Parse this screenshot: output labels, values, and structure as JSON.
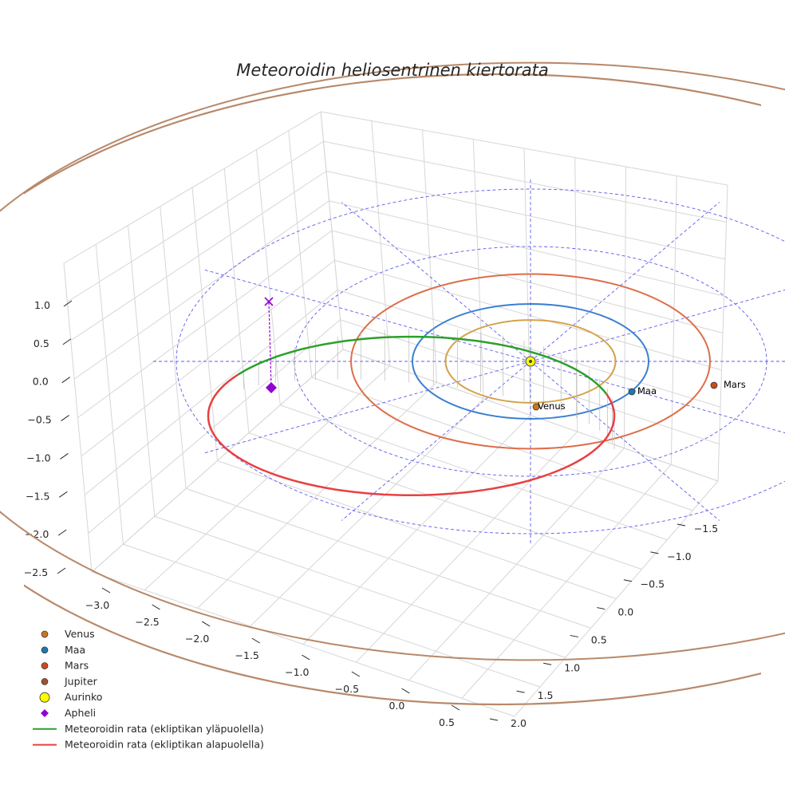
{
  "chart_data": {
    "type": "line",
    "title": "Meteoroidin heliosentrinen kiertorata",
    "projection": "3d",
    "axes": {
      "x": {
        "ticks": [
          -3.0,
          -2.5,
          -2.0,
          -1.5,
          -1.0,
          -0.5,
          0.0,
          0.5
        ],
        "tick_labels": [
          "−3.0",
          "−2.5",
          "−2.0",
          "−1.5",
          "−1.0",
          "−0.5",
          "0.0",
          "0.5"
        ]
      },
      "y": {
        "ticks": [
          -1.5,
          -1.0,
          -0.5,
          0.0,
          0.5,
          1.0,
          1.5,
          2.0
        ],
        "tick_labels": [
          "−1.5",
          "−1.0",
          "−0.5",
          "0.0",
          "0.5",
          "1.0",
          "1.5",
          "2.0"
        ]
      },
      "z": {
        "ticks": [
          1.0,
          0.5,
          0.0,
          -0.5,
          -1.0,
          -1.5,
          -2.0,
          -2.5
        ],
        "tick_labels": [
          "1.0",
          "0.5",
          "0.0",
          "−0.5",
          "−1.0",
          "−1.5",
          "−2.0",
          "−2.5"
        ]
      }
    },
    "planets": [
      {
        "name": "Venus",
        "label": "Venus",
        "color": "#c8761d",
        "orbit_color": "#d4a24a",
        "orbit_radius_au": 0.72
      },
      {
        "name": "Maa",
        "label": "Maa",
        "color": "#1f77b4",
        "orbit_color": "#3a7fcf",
        "orbit_radius_au": 1.0
      },
      {
        "name": "Mars",
        "label": "Mars",
        "color": "#d04a1a",
        "orbit_color": "#dd6e4a",
        "orbit_radius_au": 1.52
      },
      {
        "name": "Jupiter",
        "label": "",
        "color": "#a0522d",
        "orbit_color": "#b8896a",
        "orbit_radius_au": 5.2
      }
    ],
    "sun": {
      "name": "Aurinko",
      "color": "#ffff00"
    },
    "aphelion": {
      "name": "Apheli",
      "color": "#9400d3"
    },
    "grid_rings_au": [
      1,
      2,
      3
    ],
    "meteoroid_orbit": {
      "above_ecliptic": {
        "name": "Meteoroidin rata (ekliptikan yläpuolella)",
        "color": "#2ca02c"
      },
      "below_ecliptic": {
        "name": "Meteoroidin rata (ekliptikan alapuolella)",
        "color": "#e84040"
      }
    },
    "legend": [
      {
        "label": "Venus",
        "marker": "circle",
        "color": "#c8761d"
      },
      {
        "label": "Maa",
        "marker": "circle",
        "color": "#1f77b4"
      },
      {
        "label": "Mars",
        "marker": "circle",
        "color": "#d04a1a"
      },
      {
        "label": "Jupiter",
        "marker": "circle",
        "color": "#a0522d"
      },
      {
        "label": "Aurinko",
        "marker": "big-circle",
        "color": "#ffff00"
      },
      {
        "label": "Apheli",
        "marker": "diamond",
        "color": "#9400d3"
      },
      {
        "label": "Meteoroidin rata (ekliptikan yläpuolella)",
        "marker": "line",
        "color": "#2ca02c"
      },
      {
        "label": "Meteoroidin rata (ekliptikan alapuolella)",
        "marker": "line",
        "color": "#e84040"
      }
    ],
    "legend_position": "lower-left"
  }
}
